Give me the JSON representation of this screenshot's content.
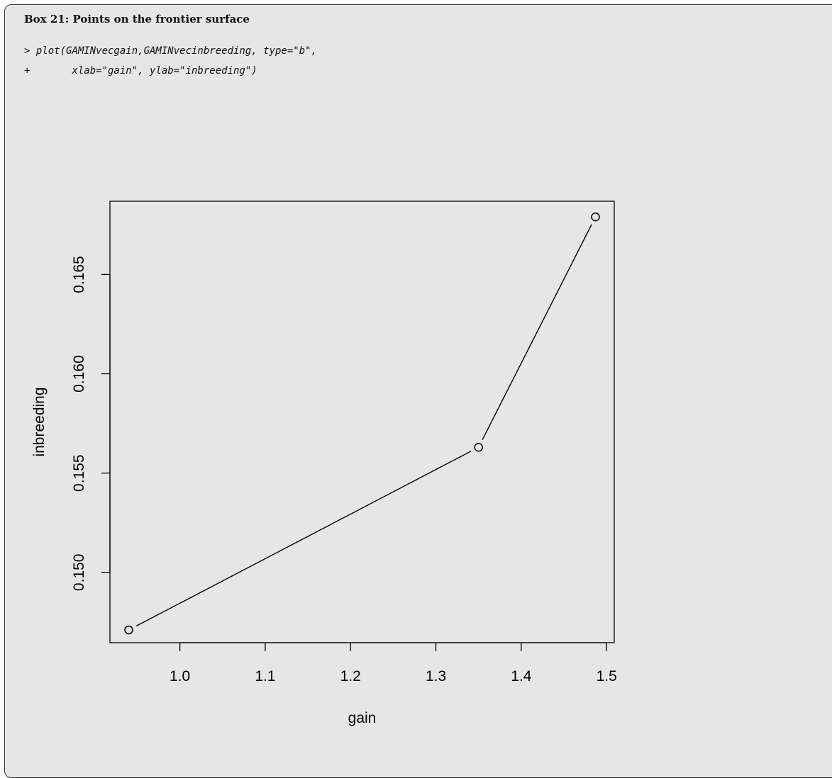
{
  "box": {
    "title": "Box 21: Points on the frontier surface",
    "code_lines": [
      "> plot(GAMINvecgain,GAMINvecinbreeding, type=\"b\",",
      "+       xlab=\"gain\", ylab=\"inbreeding\")"
    ]
  },
  "chart_data": {
    "type": "line",
    "plot_type": "b",
    "x": [
      0.94,
      1.35,
      1.487
    ],
    "y": [
      0.1471,
      0.1563,
      0.1679
    ],
    "xlabel": "gain",
    "ylabel": "inbreeding",
    "xticks": [
      1.0,
      1.1,
      1.2,
      1.3,
      1.4,
      1.5
    ],
    "xtick_labels": [
      "1.0",
      "1.1",
      "1.2",
      "1.3",
      "1.4",
      "1.5"
    ],
    "yticks": [
      0.15,
      0.155,
      0.16,
      0.165
    ],
    "ytick_labels": [
      "0.150",
      "0.155",
      "0.160",
      "0.165"
    ],
    "xlim": [
      0.918,
      1.509
    ],
    "ylim": [
      0.14646,
      0.16869
    ],
    "grid": false,
    "colors": {
      "line": "#000000",
      "points": "#000000",
      "background": "#e6e6e6"
    }
  }
}
